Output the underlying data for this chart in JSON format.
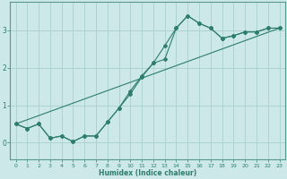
{
  "xlabel": "Humidex (Indice chaleur)",
  "bg_color": "#cce8e8",
  "grid_color": "#aad0d0",
  "line_color": "#2e7d6e",
  "spine_color": "#5a9a8a",
  "xlim": [
    -0.5,
    23.5
  ],
  "ylim": [
    -0.45,
    3.75
  ],
  "yticks": [
    0,
    1,
    2,
    3
  ],
  "xticks": [
    0,
    1,
    2,
    3,
    4,
    5,
    6,
    7,
    8,
    9,
    10,
    11,
    12,
    13,
    14,
    15,
    16,
    17,
    18,
    19,
    20,
    21,
    22,
    23
  ],
  "curve1_x": [
    0,
    1,
    2,
    3,
    4,
    5,
    6,
    7,
    8,
    9,
    10,
    11,
    12,
    13,
    14,
    15,
    16,
    17,
    18,
    19,
    20,
    21,
    22,
    23
  ],
  "curve1_y": [
    0.5,
    0.38,
    0.5,
    0.12,
    0.18,
    0.03,
    0.18,
    0.18,
    0.55,
    0.92,
    1.38,
    1.78,
    2.12,
    2.58,
    3.05,
    3.38,
    3.18,
    3.05,
    2.78,
    2.85,
    2.95,
    2.95,
    3.05,
    3.05
  ],
  "curve2_x": [
    0,
    1,
    2,
    3,
    4,
    5,
    6,
    7,
    8,
    9,
    10,
    11,
    12,
    13,
    14,
    15,
    16,
    17,
    18,
    19,
    20,
    21,
    22,
    23
  ],
  "curve2_y": [
    0.5,
    0.38,
    0.5,
    0.12,
    0.18,
    0.03,
    0.18,
    0.18,
    0.55,
    0.92,
    1.3,
    1.75,
    2.12,
    2.22,
    3.05,
    3.38,
    3.18,
    3.05,
    2.78,
    2.85,
    2.95,
    2.95,
    3.05,
    3.05
  ],
  "line3_x": [
    0,
    23
  ],
  "line3_y": [
    0.5,
    3.05
  ]
}
